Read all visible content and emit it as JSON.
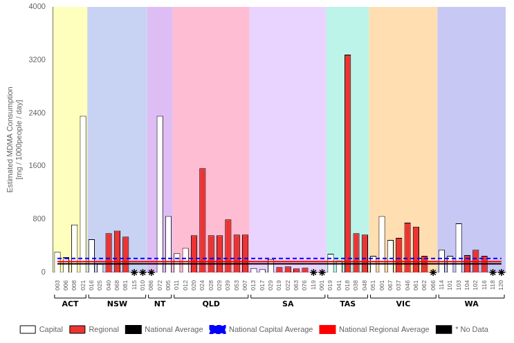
{
  "chart_data": {
    "type": "bar",
    "ylabel": "Estimated MDMA Consumption\n[mg / 1000people / day]",
    "ylim": [
      0,
      4000
    ],
    "yticks": [
      0,
      800,
      1600,
      2400,
      3200,
      4000
    ],
    "grid": false,
    "legend": "bottom",
    "categories": [
      "003",
      "006",
      "008",
      "021",
      "016",
      "025",
      "040",
      "068",
      "081",
      "115",
      "010",
      "086",
      "072",
      "005",
      "011",
      "012",
      "020",
      "024",
      "028",
      "029",
      "039",
      "053",
      "007",
      "013",
      "017",
      "029",
      "019",
      "022",
      "063",
      "076",
      "119",
      "001",
      "019",
      "041",
      "018",
      "038",
      "048",
      "051",
      "001",
      "067",
      "037",
      "046",
      "061",
      "062",
      "066",
      "114",
      "101",
      "103",
      "104",
      "102",
      "116",
      "118",
      "120"
    ],
    "groups": [
      "ACT",
      "ACT",
      "ACT",
      "ACT",
      "NSW",
      "NSW",
      "NSW",
      "NSW",
      "NSW",
      "NSW",
      "NSW",
      "NT",
      "NT",
      "NT",
      "QLD",
      "QLD",
      "QLD",
      "QLD",
      "QLD",
      "QLD",
      "QLD",
      "QLD",
      "QLD",
      "SA",
      "SA",
      "SA",
      "SA",
      "SA",
      "SA",
      "SA",
      "SA",
      "SA",
      "TAS",
      "TAS",
      "TAS",
      "TAS",
      "TAS",
      "VIC",
      "VIC",
      "VIC",
      "VIC",
      "VIC",
      "VIC",
      "VIC",
      "VIC",
      "WA",
      "WA",
      "WA",
      "WA",
      "WA",
      "WA",
      "WA",
      "WA"
    ],
    "group_colors": {
      "ACT": "#FFFF99",
      "NSW": "#AABBEE",
      "NT": "#CC99EE",
      "QLD": "#FF99BB",
      "SA": "#DDBBFF",
      "TAS": "#99EEDD",
      "VIC": "#FFCC88",
      "WA": "#AAAAEE"
    },
    "series": [
      {
        "name": "Capital",
        "type": "bar",
        "color": "white",
        "values": [
          310,
          230,
          720,
          2360,
          500,
          130,
          null,
          null,
          null,
          null,
          null,
          null,
          2360,
          850,
          290,
          370,
          null,
          null,
          null,
          null,
          null,
          null,
          null,
          65,
          50,
          200,
          null,
          null,
          null,
          null,
          null,
          null,
          280,
          180,
          null,
          null,
          null,
          250,
          850,
          490,
          null,
          null,
          null,
          null,
          null,
          340,
          250,
          740,
          null,
          null,
          null,
          null,
          null
        ]
      },
      {
        "name": "Regional",
        "type": "bar",
        "color": "#EE3333",
        "values": [
          null,
          null,
          null,
          null,
          null,
          null,
          590,
          630,
          540,
          null,
          null,
          null,
          null,
          null,
          null,
          null,
          560,
          1570,
          560,
          560,
          800,
          570,
          570,
          null,
          null,
          null,
          80,
          90,
          60,
          70,
          null,
          null,
          null,
          null,
          3280,
          590,
          570,
          null,
          null,
          null,
          520,
          750,
          690,
          250,
          null,
          null,
          null,
          null,
          260,
          340,
          250,
          null,
          null
        ]
      },
      {
        "name": "National Average",
        "type": "line",
        "color": "black",
        "line_style": "solid",
        "values": [
          130,
          130,
          130,
          130,
          130,
          130,
          130,
          130,
          130,
          130,
          130,
          130,
          130,
          130,
          130,
          130,
          130,
          130,
          130,
          130,
          130,
          130,
          130,
          130,
          130,
          130,
          130,
          130,
          130,
          130,
          130,
          130,
          130,
          130,
          130,
          130,
          130,
          130,
          130,
          130,
          130,
          130,
          130,
          130,
          130,
          130,
          130,
          130,
          130,
          130,
          130,
          130,
          130
        ]
      },
      {
        "name": "National Capital Average",
        "type": "line",
        "color": "blue",
        "line_style": "dashed",
        "values": [
          210,
          210,
          210,
          210,
          210,
          210,
          210,
          210,
          210,
          210,
          210,
          210,
          210,
          210,
          210,
          210,
          210,
          210,
          210,
          210,
          210,
          210,
          210,
          210,
          210,
          210,
          210,
          210,
          210,
          210,
          210,
          210,
          210,
          210,
          210,
          210,
          210,
          210,
          210,
          210,
          210,
          210,
          210,
          210,
          210,
          210,
          210,
          210,
          210,
          210,
          210,
          210,
          210
        ]
      },
      {
        "name": "National Regional Average",
        "type": "line",
        "color": "red",
        "line_style": "solid",
        "values": [
          165,
          165,
          165,
          165,
          165,
          165,
          165,
          165,
          165,
          165,
          165,
          165,
          165,
          165,
          165,
          165,
          165,
          165,
          165,
          165,
          165,
          165,
          165,
          165,
          165,
          165,
          165,
          165,
          165,
          165,
          165,
          165,
          165,
          165,
          165,
          165,
          165,
          165,
          165,
          165,
          165,
          165,
          165,
          165,
          165,
          165,
          165,
          165,
          165,
          165,
          165,
          165,
          165
        ]
      },
      {
        "name": "* No Data",
        "type": "line",
        "color": "black",
        "marker": "star",
        "line_style": "none",
        "values": [
          null,
          null,
          null,
          null,
          null,
          null,
          null,
          null,
          null,
          0,
          0,
          0,
          null,
          null,
          null,
          null,
          null,
          null,
          null,
          null,
          null,
          null,
          null,
          null,
          null,
          null,
          null,
          null,
          null,
          null,
          0,
          0,
          null,
          null,
          null,
          null,
          null,
          null,
          null,
          null,
          null,
          null,
          null,
          null,
          0,
          null,
          null,
          null,
          null,
          null,
          null,
          0,
          0
        ]
      }
    ]
  }
}
